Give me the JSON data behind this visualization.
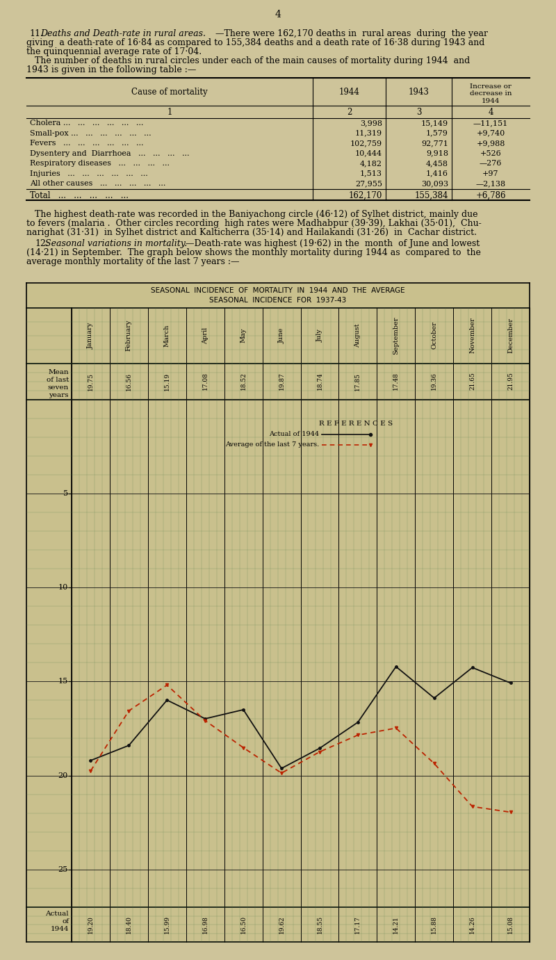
{
  "bg_color": "#cec49a",
  "grid_color": "#4a7a4a",
  "page_number": "4",
  "actual_1944": [
    19.2,
    18.4,
    15.99,
    16.98,
    16.5,
    19.62,
    18.55,
    17.17,
    14.21,
    15.88,
    14.26,
    15.08
  ],
  "avg_7years": [
    19.75,
    16.56,
    15.19,
    17.08,
    18.52,
    19.87,
    18.74,
    17.85,
    17.48,
    19.36,
    21.65,
    21.95
  ],
  "months": [
    "January",
    "February",
    "March",
    "April",
    "May",
    "June",
    "July",
    "August",
    "September",
    "October",
    "November",
    "December"
  ],
  "graph_title1": "SEASONAL  INCIDENCE  OF  MORTALITY  IN  1944  AND  THE  AVERAGE",
  "graph_title2": "SEASONAL  INCIDENCE  FOR  1937-43",
  "actual_label": "Actual of 1944",
  "avg_label": "Average of the last 7 years.",
  "references_label": "R E F E R E N C E S",
  "ylim": [
    0,
    27
  ],
  "yticks": [
    5,
    10,
    15,
    20,
    25
  ],
  "actual_color": "#111111",
  "avg_color": "#bb2200",
  "table_rows": [
    [
      "Cholera",
      "3,998",
      "15,149",
      "—11,151"
    ],
    [
      "Small-pox",
      "11,319",
      "1,579",
      "+9,740"
    ],
    [
      "Fevers",
      "102,759",
      "92,771",
      "+9,988"
    ],
    [
      "Dysentery and  Diarrhoea",
      "10,444",
      "9,918",
      "+526"
    ],
    [
      "Respiratory diseases",
      "4,182",
      "4,458",
      "—276"
    ],
    [
      "Injuries",
      "1,513",
      "1,416",
      "+97"
    ],
    [
      "All other causes",
      "27,955",
      "30,093",
      "—2,138"
    ]
  ]
}
